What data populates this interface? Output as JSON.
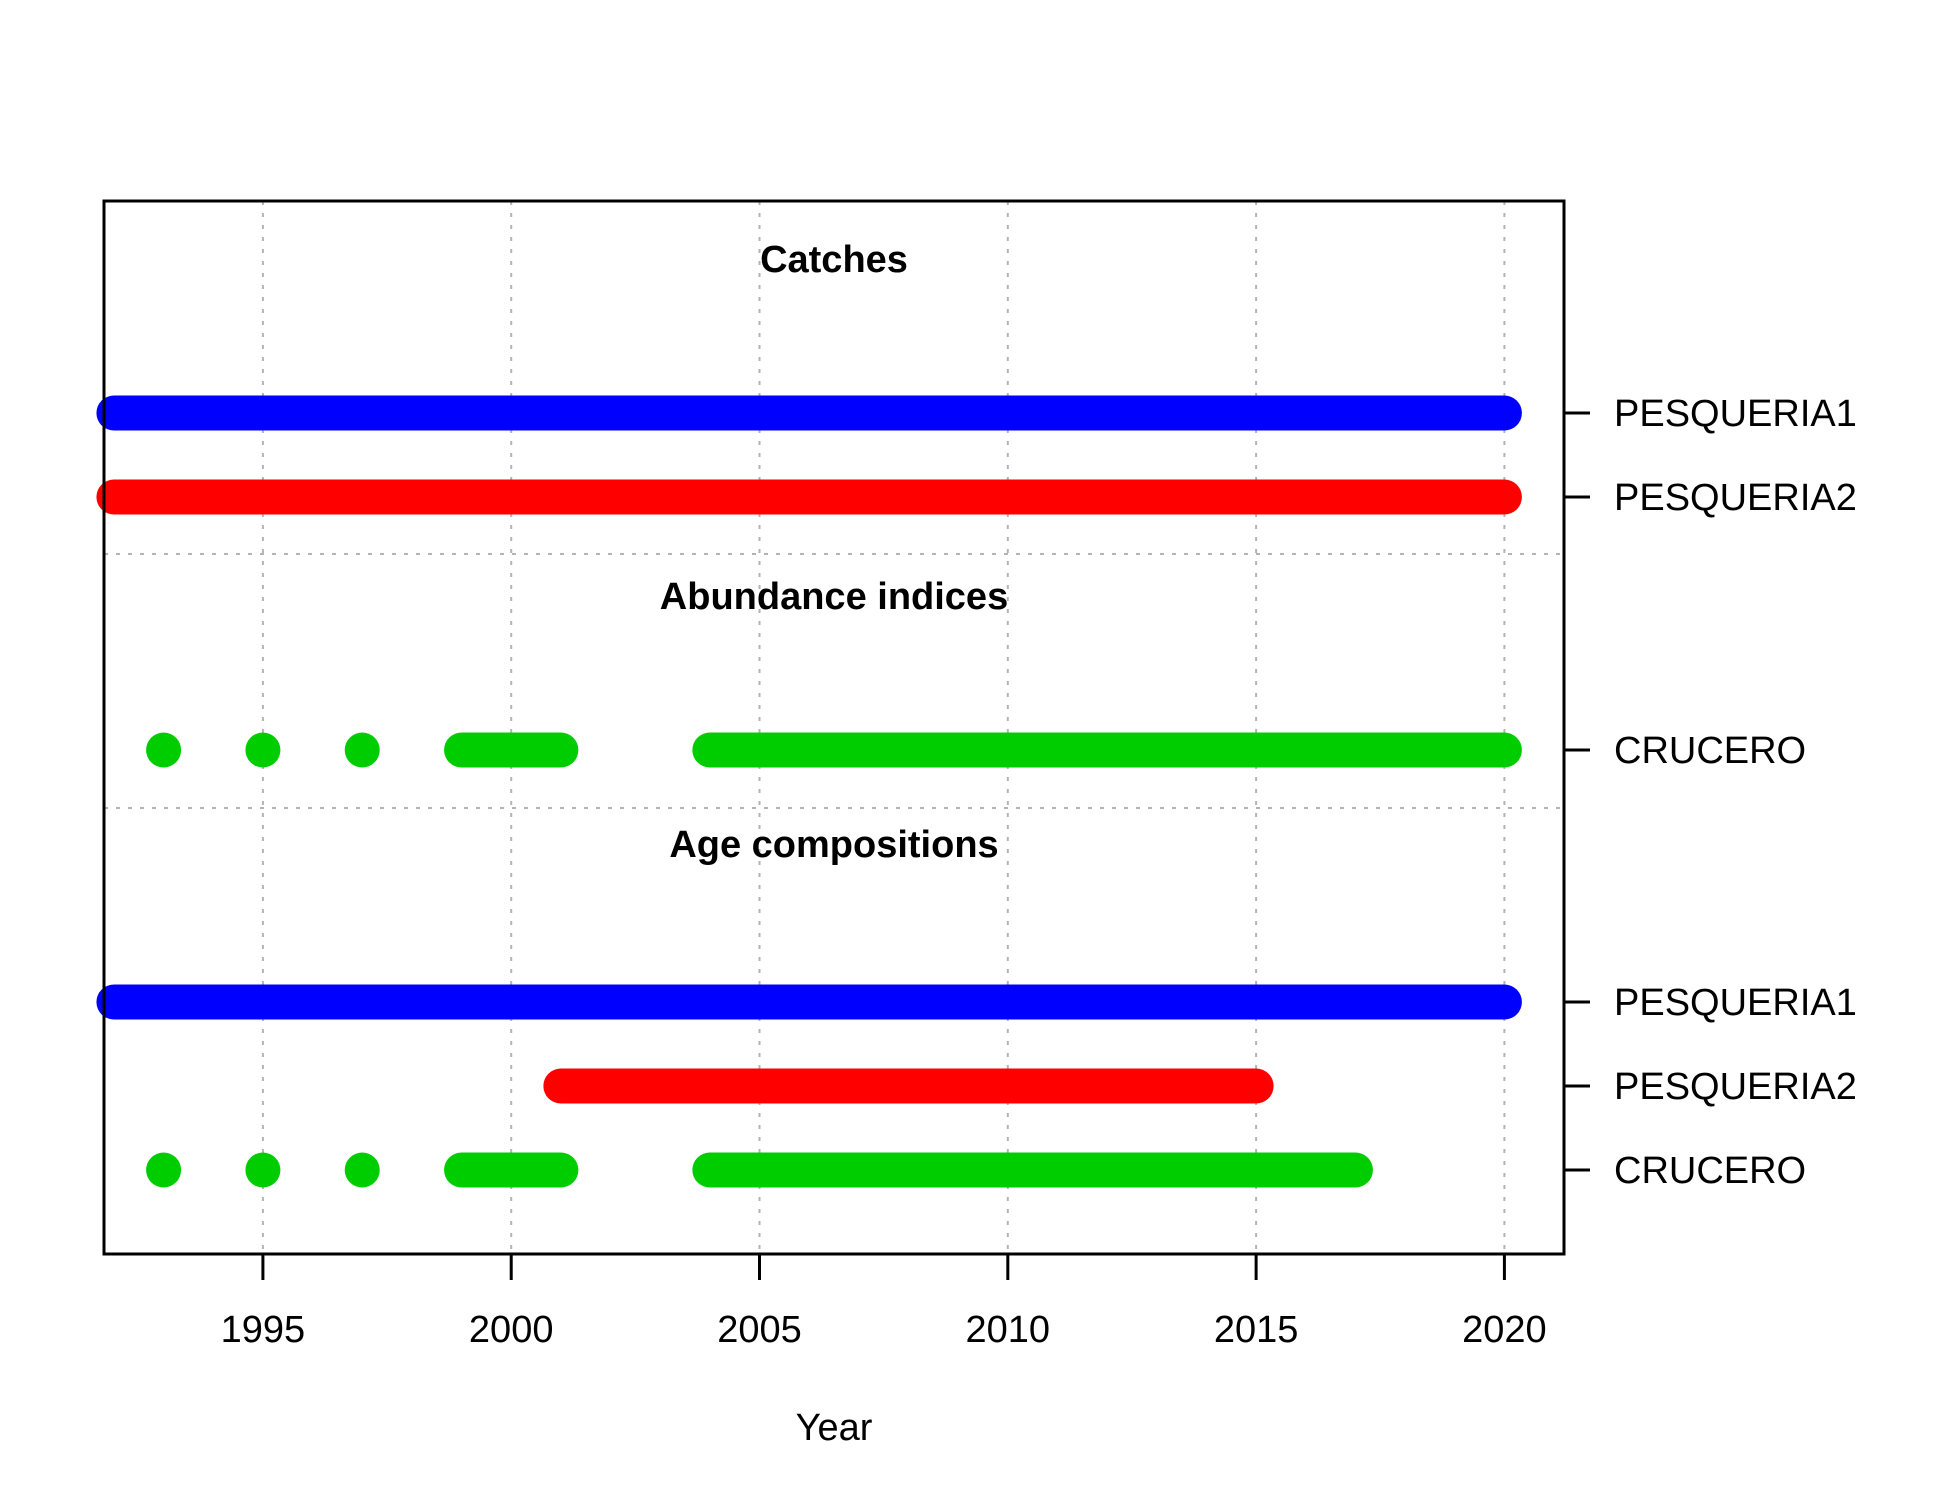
{
  "chart_data": {
    "type": "timeline",
    "xlabel": "Year",
    "xlim": [
      1991.8,
      2021.2
    ],
    "xticks": [
      1995,
      2000,
      2005,
      2010,
      2015,
      2020
    ],
    "grid": true,
    "colors": {
      "PESQUERIA1": "#0000ff",
      "PESQUERIA2": "#ff0000",
      "CRUCERO": "#00cd00"
    },
    "sections": [
      {
        "title": "Catches",
        "rows": [
          {
            "name": "PESQUERIA1",
            "years": [
              1992,
              2020
            ]
          },
          {
            "name": "PESQUERIA2",
            "years": [
              1992,
              2020
            ]
          }
        ]
      },
      {
        "title": "Abundance indices",
        "rows": [
          {
            "name": "CRUCERO",
            "years": [
              1993,
              1995,
              1997,
              1999,
              2000,
              2001,
              2004,
              2020
            ]
          }
        ]
      },
      {
        "title": "Age compositions",
        "rows": [
          {
            "name": "PESQUERIA1",
            "years": [
              1992,
              2020
            ]
          },
          {
            "name": "PESQUERIA2",
            "years": [
              2001,
              2015
            ]
          },
          {
            "name": "CRUCERO",
            "years": [
              1993,
              1995,
              1997,
              1999,
              2000,
              2001,
              2004,
              2017
            ]
          }
        ]
      }
    ]
  }
}
